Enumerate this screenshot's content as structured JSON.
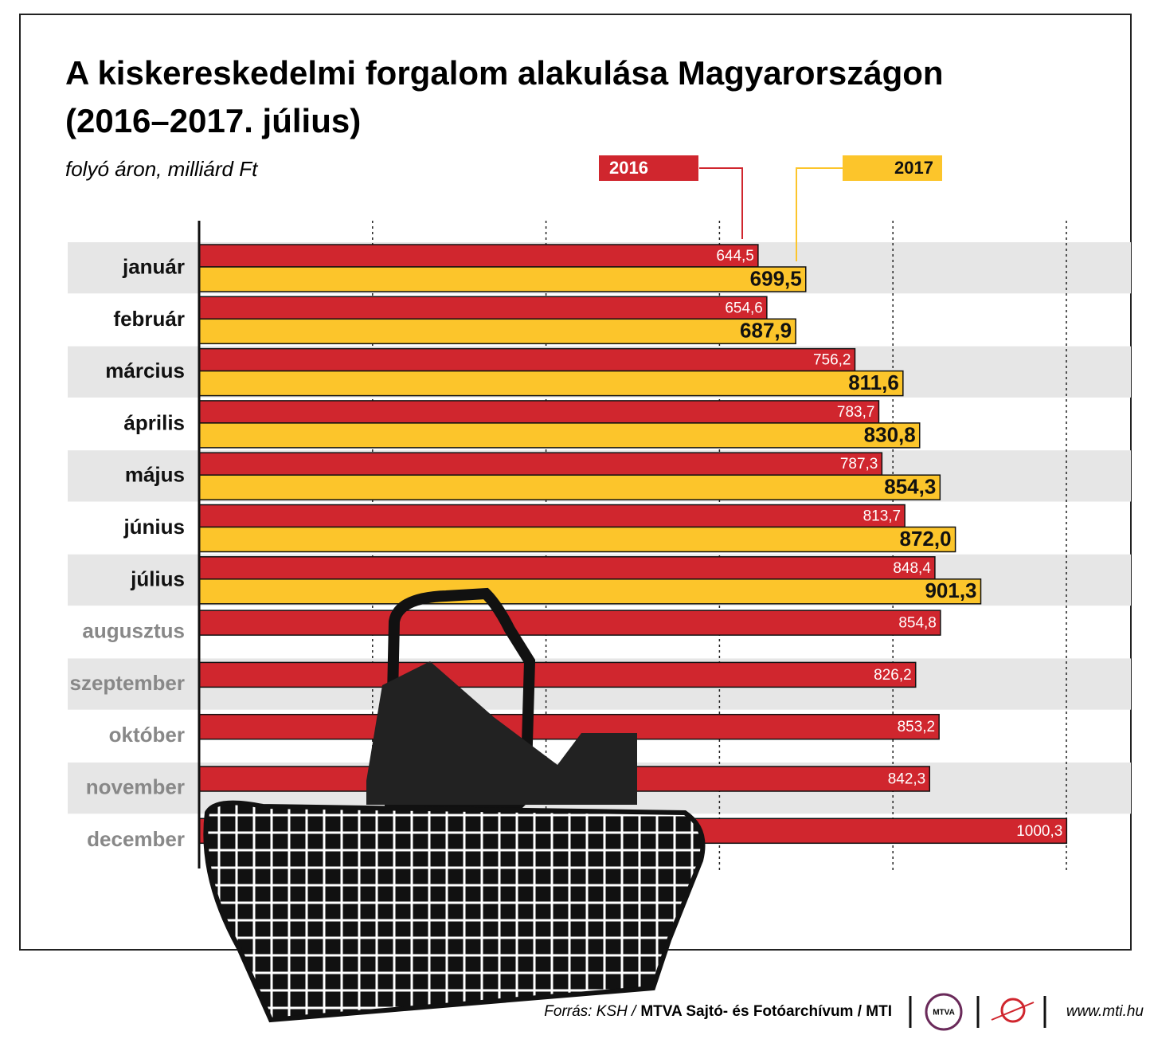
{
  "chart_data": {
    "type": "hbar",
    "title": [
      "A kiskereskedelmi forgalom alakulása Magyarországon",
      "(2016–2017. július)"
    ],
    "subtitle": "folyó áron, milliárd Ft",
    "categories": [
      "január",
      "február",
      "március",
      "április",
      "május",
      "június",
      "július",
      "augusztus",
      "szeptember",
      "október",
      "november",
      "december"
    ],
    "series": [
      {
        "name": "2016",
        "color": "#d0262e",
        "values": [
          644.5,
          654.6,
          756.2,
          783.7,
          787.3,
          813.7,
          848.4,
          854.8,
          826.2,
          853.2,
          842.3,
          1000.3
        ],
        "value_labels": [
          "644,5",
          "654,6",
          "756,2",
          "783,7",
          "787,3",
          "813,7",
          "848,4",
          "854,8",
          "826,2",
          "853,2",
          "842,3",
          "1000,3"
        ]
      },
      {
        "name": "2017",
        "color": "#fcc52b",
        "values": [
          699.5,
          687.9,
          811.6,
          830.8,
          854.3,
          872.0,
          901.3,
          null,
          null,
          null,
          null,
          null
        ],
        "value_labels": [
          "699,5",
          "687,9",
          "811,6",
          "830,8",
          "854,3",
          "872,0",
          "901,3",
          null,
          null,
          null,
          null,
          null
        ]
      }
    ],
    "xlim": [
      0,
      1000
    ],
    "xticks": [
      200,
      400,
      600,
      800,
      1000
    ],
    "grid": true,
    "source": {
      "label": "Forrás: KSH /",
      "name": "MTVA Sajtó- és Fotóarchívum / MTI"
    },
    "logo": "MTVA",
    "website": "www.mti.hu"
  }
}
